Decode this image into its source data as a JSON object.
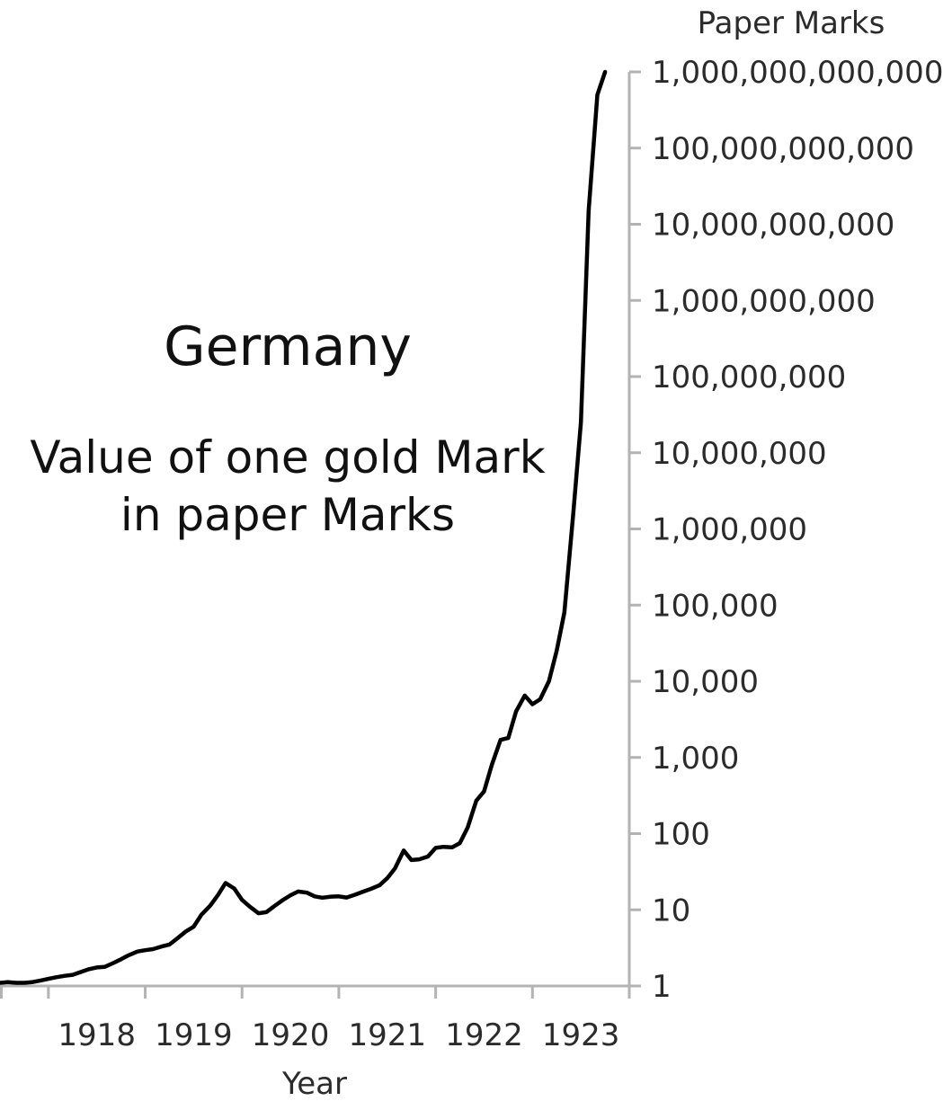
{
  "chart_data": {
    "type": "line",
    "title": "Germany",
    "subtitle": [
      "Value of one gold Mark",
      "in paper Marks"
    ],
    "xlabel": "Year",
    "ylabel": "Paper Marks",
    "y_scale": "log",
    "ylim": [
      1,
      1000000000000
    ],
    "xlim": [
      1917.5,
      1924.0
    ],
    "y_axis_position": "right",
    "grid": false,
    "legend": "none",
    "line_color": "#000000",
    "x_ticks": [
      1918,
      1919,
      1920,
      1921,
      1922,
      1923,
      1924
    ],
    "x_tick_labels": [
      {
        "label": "1918",
        "x": 1918.5
      },
      {
        "label": "1919",
        "x": 1919.5
      },
      {
        "label": "1920",
        "x": 1920.5
      },
      {
        "label": "1921",
        "x": 1921.5
      },
      {
        "label": "1922",
        "x": 1922.5
      },
      {
        "label": "1923",
        "x": 1923.5
      }
    ],
    "y_ticks": [
      {
        "value": 1,
        "label": "1"
      },
      {
        "value": 10,
        "label": "10"
      },
      {
        "value": 100,
        "label": "100"
      },
      {
        "value": 1000,
        "label": "1,000"
      },
      {
        "value": 10000,
        "label": "10,000"
      },
      {
        "value": 100000,
        "label": "100,000"
      },
      {
        "value": 1000000,
        "label": "1,000,000"
      },
      {
        "value": 10000000,
        "label": "10,000,000"
      },
      {
        "value": 100000000,
        "label": "100,000,000"
      },
      {
        "value": 1000000000,
        "label": "1,000,000,000"
      },
      {
        "value": 10000000000,
        "label": "10,000,000,000"
      },
      {
        "value": 100000000000,
        "label": "100,000,000,000"
      },
      {
        "value": 1000000000000,
        "label": "1,000,000,000,000"
      }
    ],
    "series": [
      {
        "points": [
          [
            1917.5,
            1.1
          ],
          [
            1917.58,
            1.12
          ],
          [
            1917.67,
            1.1
          ],
          [
            1917.75,
            1.1
          ],
          [
            1917.83,
            1.12
          ],
          [
            1917.92,
            1.18
          ],
          [
            1918.0,
            1.24
          ],
          [
            1918.08,
            1.3
          ],
          [
            1918.17,
            1.36
          ],
          [
            1918.25,
            1.4
          ],
          [
            1918.33,
            1.52
          ],
          [
            1918.42,
            1.66
          ],
          [
            1918.5,
            1.75
          ],
          [
            1918.58,
            1.78
          ],
          [
            1918.67,
            2.0
          ],
          [
            1918.75,
            2.24
          ],
          [
            1918.83,
            2.53
          ],
          [
            1918.92,
            2.83
          ],
          [
            1919.0,
            2.95
          ],
          [
            1919.08,
            3.05
          ],
          [
            1919.17,
            3.3
          ],
          [
            1919.25,
            3.5
          ],
          [
            1919.33,
            4.2
          ],
          [
            1919.42,
            5.2
          ],
          [
            1919.5,
            6.0
          ],
          [
            1919.58,
            8.6
          ],
          [
            1919.67,
            11.3
          ],
          [
            1919.75,
            15.5
          ],
          [
            1919.83,
            22.5
          ],
          [
            1919.92,
            19.0
          ],
          [
            1920.0,
            13.5
          ],
          [
            1920.08,
            11.0
          ],
          [
            1920.17,
            9.0
          ],
          [
            1920.25,
            9.3
          ],
          [
            1920.33,
            11.1
          ],
          [
            1920.42,
            13.4
          ],
          [
            1920.5,
            15.5
          ],
          [
            1920.58,
            17.4
          ],
          [
            1920.67,
            16.8
          ],
          [
            1920.75,
            15.0
          ],
          [
            1920.83,
            14.4
          ],
          [
            1920.92,
            14.9
          ],
          [
            1921.0,
            15.0
          ],
          [
            1921.08,
            14.5
          ],
          [
            1921.17,
            15.8
          ],
          [
            1921.25,
            17.3
          ],
          [
            1921.33,
            18.8
          ],
          [
            1921.42,
            21.0
          ],
          [
            1921.5,
            26.0
          ],
          [
            1921.58,
            35.0
          ],
          [
            1921.67,
            60.0
          ],
          [
            1921.75,
            45.0
          ],
          [
            1921.83,
            46.0
          ],
          [
            1921.92,
            50.0
          ],
          [
            1922.0,
            65.0
          ],
          [
            1922.08,
            67.0
          ],
          [
            1922.17,
            66.0
          ],
          [
            1922.25,
            75.0
          ],
          [
            1922.33,
            120
          ],
          [
            1922.42,
            270
          ],
          [
            1922.5,
            360
          ],
          [
            1922.58,
            800
          ],
          [
            1922.67,
            1700
          ],
          [
            1922.75,
            1800
          ],
          [
            1922.83,
            4000
          ],
          [
            1922.92,
            6500
          ],
          [
            1923.0,
            5000
          ],
          [
            1923.08,
            5800
          ],
          [
            1923.17,
            10000
          ],
          [
            1923.25,
            25000
          ],
          [
            1923.33,
            80000
          ],
          [
            1923.42,
            1500000
          ],
          [
            1923.5,
            25000000
          ],
          [
            1923.58,
            15000000000
          ],
          [
            1923.67,
            500000000000
          ],
          [
            1923.75,
            1000000000000
          ]
        ]
      }
    ]
  }
}
